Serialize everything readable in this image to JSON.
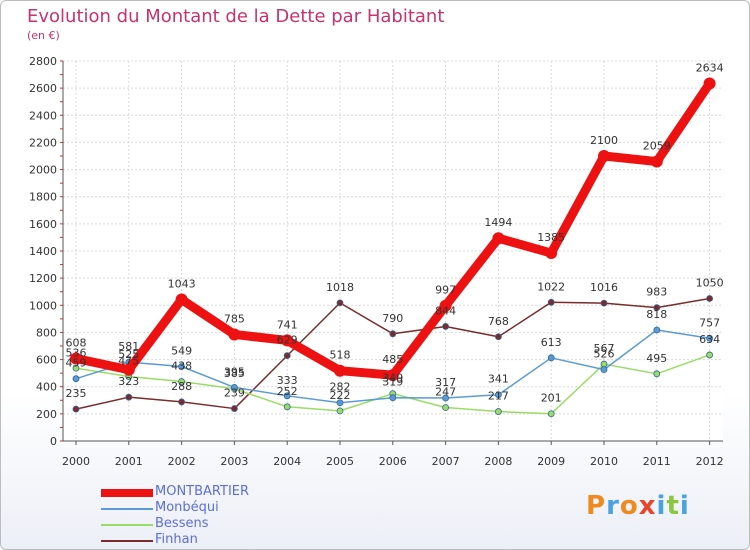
{
  "header": {
    "title": "Evolution du Montant de la Dette par Habitant",
    "subtitle": "(en €)"
  },
  "logo": {
    "letters": [
      "P",
      "r",
      "o",
      "x",
      "i",
      "t",
      "i"
    ],
    "colors": [
      "#f08a1e",
      "#4aa3df",
      "#f08a1e",
      "#e8462a",
      "#4aa3df",
      "#8cc63f",
      "#4aa3df"
    ]
  },
  "chart_data": {
    "type": "line",
    "x": [
      "2000",
      "2001",
      "2002",
      "2003",
      "2004",
      "2005",
      "2006",
      "2007",
      "2008",
      "2009",
      "2010",
      "2011",
      "2012"
    ],
    "ylim": [
      0,
      2800
    ],
    "yticks": [
      0,
      200,
      400,
      600,
      800,
      1000,
      1200,
      1400,
      1600,
      1800,
      2000,
      2200,
      2400,
      2600,
      2800
    ],
    "grid": true,
    "legend_position": "bottom-left",
    "series": [
      {
        "name": "MONTBARTIER",
        "color": "#ee1111",
        "values": [
          608,
          525,
          1043,
          785,
          741,
          518,
          485,
          997,
          1494,
          1385,
          2100,
          2059,
          2634
        ]
      },
      {
        "name": "Monbéqui",
        "color": "#5b9bd5",
        "values": [
          459,
          581,
          549,
          395,
          333,
          282,
          319,
          317,
          341,
          613,
          526,
          818,
          757
        ]
      },
      {
        "name": "Bessens",
        "color": "#99dd66",
        "values": [
          536,
          475,
          438,
          385,
          252,
          222,
          349,
          247,
          217,
          201,
          567,
          495,
          634
        ]
      },
      {
        "name": "Finhan",
        "color": "#7a2c2c",
        "values": [
          235,
          323,
          288,
          239,
          629,
          1018,
          790,
          844,
          768,
          1022,
          1016,
          983,
          1050
        ]
      }
    ]
  }
}
